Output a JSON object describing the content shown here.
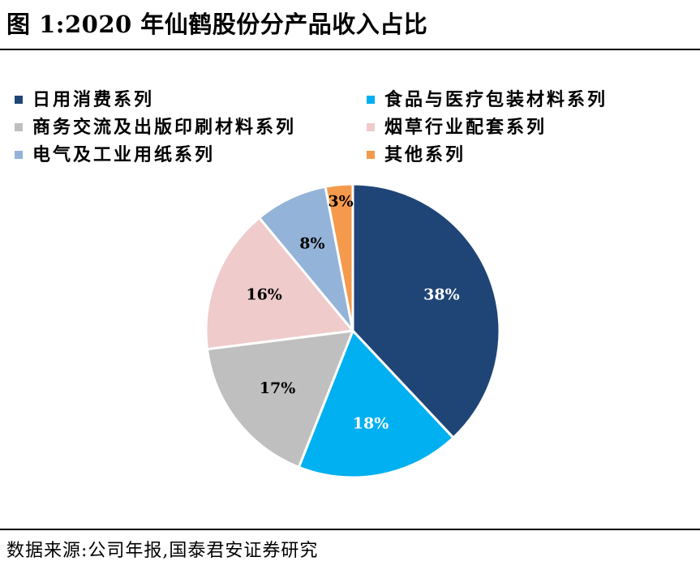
{
  "figure": {
    "title": "图 1:2020 年仙鹤股份分产品收入占比"
  },
  "source": {
    "text": "数据来源:公司年报,国泰君安证券研究"
  },
  "chart_data": {
    "type": "pie",
    "title": "图 1:2020 年仙鹤股份分产品收入占比",
    "legend_position": "top",
    "start_angle": "12 o'clock, clockwise",
    "slices": [
      {
        "label": "日用消费系列",
        "value": 38,
        "value_label": "38%",
        "color": "#1f4577",
        "text_color": "#ffffff"
      },
      {
        "label": "食品与医疗包装材料系列",
        "value": 18,
        "value_label": "18%",
        "color": "#00b0f0",
        "text_color": "#ffffff"
      },
      {
        "label": "商务交流及出版印刷材料系列",
        "value": 17,
        "value_label": "17%",
        "color": "#bfbfbf",
        "text_color": "#000000"
      },
      {
        "label": "烟草行业配套系列",
        "value": 16,
        "value_label": "16%",
        "color": "#efcbcb",
        "text_color": "#000000"
      },
      {
        "label": "电气及工业用纸系列",
        "value": 8,
        "value_label": "8%",
        "color": "#94b3d8",
        "text_color": "#000000"
      },
      {
        "label": "其他系列",
        "value": 3,
        "value_label": "3%",
        "color": "#f59a4c",
        "text_color": "#000000"
      }
    ]
  }
}
